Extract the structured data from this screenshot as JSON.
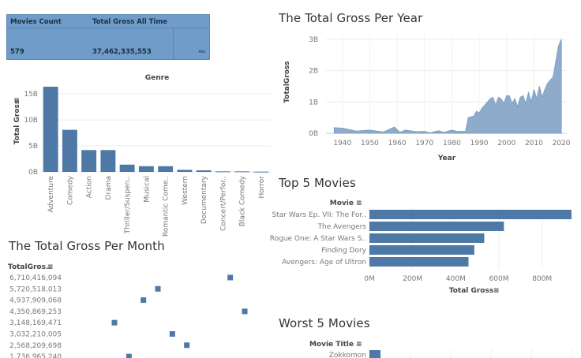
{
  "kpi": {
    "movies_count_label": "Movies Count",
    "total_gross_label": "Total Gross All Time",
    "movies_count": "579",
    "total_gross": "37,462,335,553",
    "abc": "Abc"
  },
  "titles": {
    "per_year": "The Total Gross Per Year",
    "top5": "Top 5 Movies",
    "per_month": "The Total Gross Per Month",
    "worst5": "Worst 5 Movies"
  },
  "chart_data": [
    {
      "type": "bar",
      "title": "Genre",
      "ylabel": "Total Gross",
      "ylim": [
        0,
        17
      ],
      "y_ticks": [
        "0B",
        "5B",
        "10B",
        "15B"
      ],
      "categories": [
        "Adventure",
        "Comedy",
        "Action",
        "Drama",
        "Thriller/Suspen..",
        "Musical",
        "Romantic Come..",
        "Western",
        "Documentary",
        "Concert/Perfor..",
        "Black Comedy",
        "Horror"
      ],
      "values": [
        16.4,
        8.1,
        4.2,
        4.2,
        1.4,
        1.1,
        1.1,
        0.4,
        0.3,
        0.1,
        0.1,
        0.05
      ],
      "color": "#4e79a7"
    },
    {
      "type": "area",
      "title": "The Total Gross Per Year",
      "xlabel": "Year",
      "ylabel": "TotalGross",
      "ylim": [
        0,
        3.2
      ],
      "y_ticks": [
        "0B",
        "1B",
        "2B",
        "3B"
      ],
      "x_ticks": [
        "1940",
        "1950",
        "1960",
        "1970",
        "1980",
        "1990",
        "2000",
        "2010",
        "2020"
      ],
      "x": [
        1937,
        1940,
        1945,
        1950,
        1955,
        1959,
        1961,
        1963,
        1967,
        1970,
        1972,
        1975,
        1977,
        1980,
        1982,
        1985,
        1986,
        1988,
        1989,
        1990,
        1991,
        1993,
        1994,
        1995,
        1996,
        1997,
        1998,
        1999,
        2000,
        2001,
        2002,
        2003,
        2004,
        2005,
        2006,
        2007,
        2008,
        2009,
        2010,
        2011,
        2012,
        2013,
        2014,
        2015,
        2016,
        2017,
        2018,
        2019,
        2020
      ],
      "y": [
        0.18,
        0.16,
        0.07,
        0.1,
        0.04,
        0.2,
        0.03,
        0.1,
        0.05,
        0.06,
        0.01,
        0.08,
        0.03,
        0.1,
        0.06,
        0.06,
        0.5,
        0.55,
        0.7,
        0.65,
        0.8,
        1.0,
        1.1,
        1.15,
        0.9,
        1.15,
        1.1,
        0.95,
        1.2,
        1.2,
        0.95,
        1.1,
        0.85,
        1.15,
        1.2,
        0.95,
        1.3,
        1.0,
        1.4,
        1.1,
        1.5,
        1.15,
        1.4,
        1.6,
        1.7,
        1.8,
        2.3,
        2.8,
        3.0
      ],
      "color": "#4e79a7"
    },
    {
      "type": "bar",
      "orientation": "horizontal",
      "title": "Top 5 Movies",
      "ylabel": "Movie",
      "xlabel": "Total Gross",
      "xlim": [
        0,
        940
      ],
      "x_ticks": [
        "0M",
        "200M",
        "400M",
        "600M",
        "800M"
      ],
      "categories": [
        "Star Wars Ep. VII: The For..",
        "The Avengers",
        "Rogue One: A Star Wars S..",
        "Finding Dory",
        "Avengers: Age of Ultron"
      ],
      "values": [
        936,
        623,
        532,
        486,
        459
      ],
      "color": "#4e79a7"
    },
    {
      "type": "scatter",
      "title": "The Total Gross Per Month",
      "ylabel": "TotalGros..",
      "y_labels": [
        "6,710,416,094",
        "5,720,518,013",
        "4,937,909,068",
        "4,350,869,253",
        "3,148,169,471",
        "3,032,210,005",
        "2,568,209,698",
        "1,736,965,240"
      ],
      "x_month_index": [
        9,
        4,
        3,
        10,
        1,
        5,
        6,
        2
      ],
      "color": "#4e79a7"
    },
    {
      "type": "bar",
      "orientation": "horizontal",
      "title": "Worst 5 Movies",
      "ylabel": "Movie Title",
      "categories": [
        "Zokkomon"
      ],
      "values": [
        1
      ],
      "color": "#4e79a7"
    }
  ]
}
